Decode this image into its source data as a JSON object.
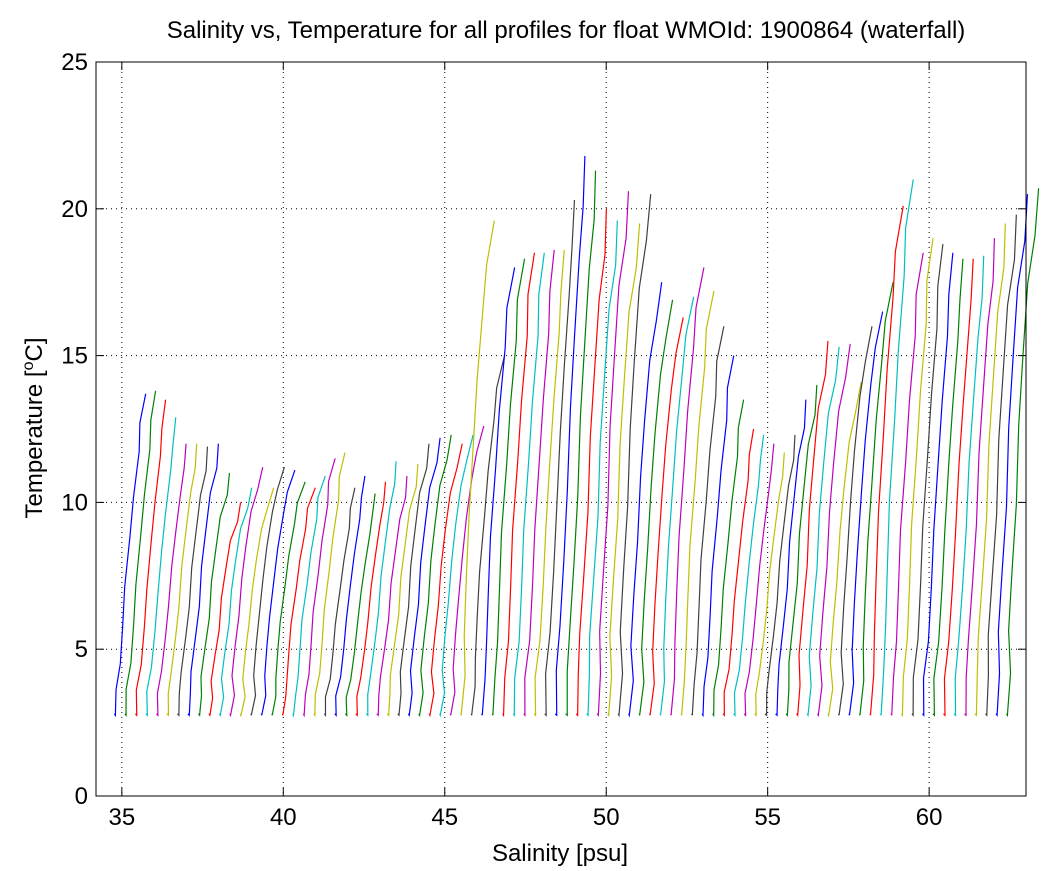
{
  "chart_data": {
    "type": "line",
    "title": "Salinity vs, Temperature for all profiles for float WMOId: 1900864 (waterfall)",
    "xlabel": "Salinity [psu]",
    "ylabel_main": "Temperature [",
    "ylabel_sup": "o",
    "ylabel_end": "C]",
    "xlim": [
      34.2,
      63
    ],
    "ylim": [
      0,
      25
    ],
    "xticks": [
      35,
      40,
      45,
      50,
      55,
      60
    ],
    "yticks": [
      0,
      5,
      10,
      15,
      20,
      25
    ],
    "grid": true,
    "color_cycle": [
      "#0000ff",
      "#008000",
      "#ff0000",
      "#00bfbf",
      "#bf00bf",
      "#bfbf00",
      "#404040"
    ],
    "waterfall": {
      "profile_count": 86,
      "first_x": 34.8,
      "offset_per_profile": 0.325,
      "top_temperatures": [
        13.7,
        13.8,
        13.5,
        12.9,
        12.0,
        12.0,
        11.9,
        12.0,
        11.0,
        10.0,
        10.5,
        11.2,
        10.5,
        11.2,
        11.1,
        10.7,
        10.5,
        10.9,
        11.5,
        11.7,
        10.5,
        10.9,
        10.3,
        10.7,
        11.4,
        10.9,
        11.3,
        12.0,
        12.2,
        12.3,
        12.0,
        12.3,
        12.6,
        19.6,
        15.0,
        18.0,
        18.3,
        18.5,
        18.5,
        18.6,
        18.6,
        20.3,
        21.8,
        21.3,
        20.0,
        19.6,
        20.6,
        19.5,
        20.5,
        17.5,
        16.9,
        16.3,
        17.0,
        18.0,
        17.2,
        16.0,
        15.0,
        13.5,
        12.5,
        12.3,
        12.0,
        11.7,
        12.3,
        13.5,
        14.0,
        15.5,
        15.3,
        15.4,
        14.1,
        16.0,
        16.5,
        17.5,
        20.1,
        21.0,
        18.5,
        19.0,
        18.8,
        18.5,
        18.3,
        18.3,
        18.4,
        19.0,
        19.5,
        19.8,
        20.5,
        20.7
      ],
      "deep_temperature": 2.75,
      "profile_shape": [
        [
          0,
          0
        ],
        [
          0.06,
          0.08
        ],
        [
          0.1,
          0.16
        ],
        [
          0.2,
          0.28
        ],
        [
          0.3,
          0.4
        ],
        [
          0.42,
          0.55
        ],
        [
          0.55,
          0.68
        ],
        [
          0.72,
          0.82
        ],
        [
          0.85,
          0.91
        ],
        [
          1,
          1
        ]
      ]
    }
  }
}
